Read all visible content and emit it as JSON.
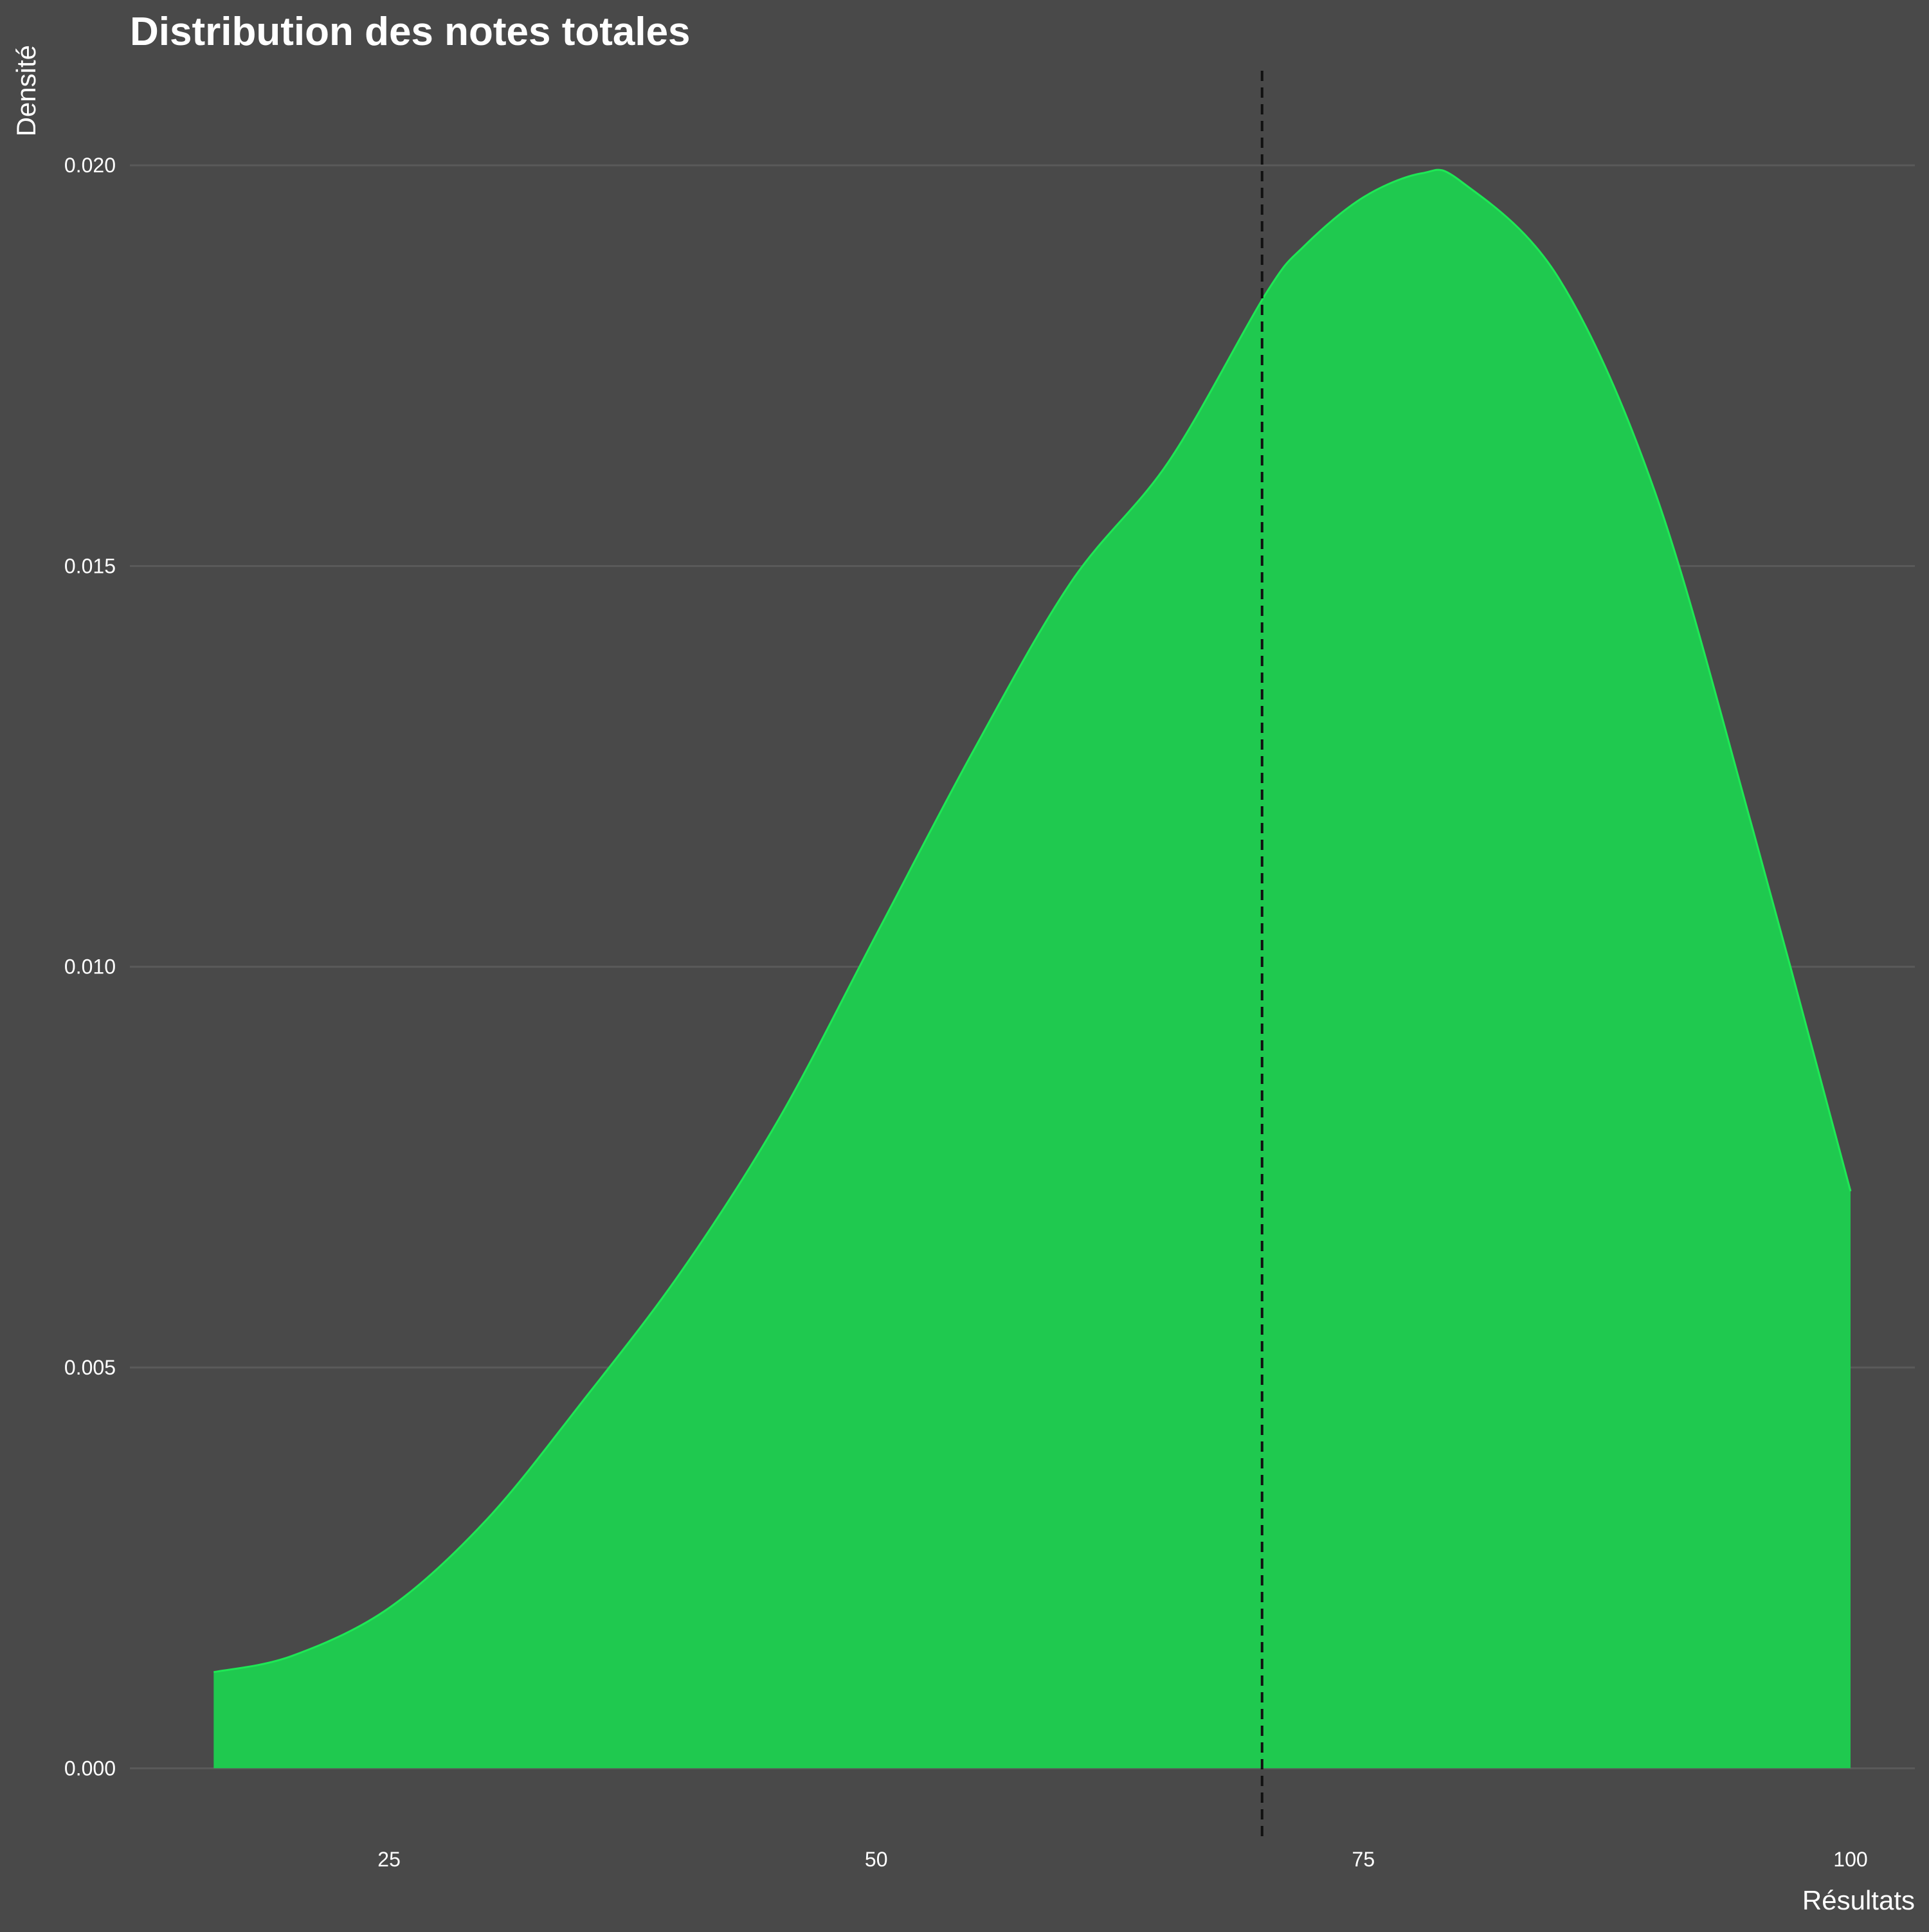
{
  "chart_data": {
    "type": "area",
    "title": "Distribution des notes totales",
    "xlabel": "Résultats",
    "ylabel": "Densité",
    "xlim": [
      11.7,
      103.3
    ],
    "ylim": [
      -0.00104,
      0.0213
    ],
    "x_ticks": [
      25,
      50,
      75,
      100
    ],
    "y_ticks": [
      0.0,
      0.005,
      0.01,
      0.015,
      0.02
    ],
    "x_tick_labels": [
      "25",
      "50",
      "75",
      "100"
    ],
    "y_tick_labels": [
      "0.000",
      "0.005",
      "0.010",
      "0.015",
      "0.020"
    ],
    "grid": "horizontal major lines",
    "legend": "none",
    "colors": {
      "background": "#494949",
      "fill": "#1fc94f",
      "line": "#1ee855",
      "reference_line": "#111111",
      "grid": "#5a5a5a"
    },
    "reference_line": {
      "x": 69.8,
      "style": "dashed"
    },
    "series": [
      {
        "x": [
          16,
          20,
          25,
          30,
          35,
          40,
          45,
          50,
          55,
          60,
          65,
          70,
          72,
          75,
          78,
          80,
          85,
          90,
          95,
          100
        ],
        "y": [
          0.0012,
          0.0014,
          0.002,
          0.0031,
          0.0046,
          0.0062,
          0.0081,
          0.0104,
          0.0127,
          0.0148,
          0.0163,
          0.0184,
          0.019,
          0.0196,
          0.0199,
          0.0198,
          0.0186,
          0.0159,
          0.0117,
          0.0072
        ]
      }
    ]
  }
}
